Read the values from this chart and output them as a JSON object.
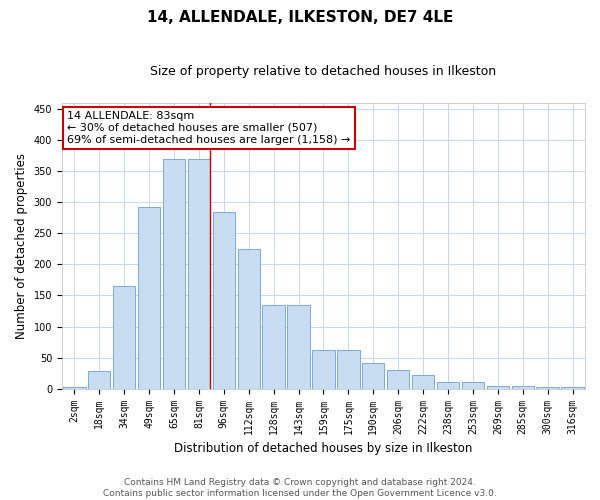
{
  "title": "14, ALLENDALE, ILKESTON, DE7 4LE",
  "subtitle": "Size of property relative to detached houses in Ilkeston",
  "xlabel": "Distribution of detached houses by size in Ilkeston",
  "ylabel": "Number of detached properties",
  "categories": [
    "2sqm",
    "18sqm",
    "34sqm",
    "49sqm",
    "65sqm",
    "81sqm",
    "96sqm",
    "112sqm",
    "128sqm",
    "143sqm",
    "159sqm",
    "175sqm",
    "190sqm",
    "206sqm",
    "222sqm",
    "238sqm",
    "253sqm",
    "269sqm",
    "285sqm",
    "300sqm",
    "316sqm"
  ],
  "values": [
    2,
    28,
    165,
    293,
    370,
    370,
    285,
    225,
    135,
    135,
    62,
    62,
    42,
    30,
    22,
    10,
    10,
    5,
    5,
    2,
    2
  ],
  "bar_color": "#c9ddf2",
  "bar_edge_color": "#6b9fd4",
  "vline_color": "#cc0000",
  "annotation_text": "14 ALLENDALE: 83sqm\n← 30% of detached houses are smaller (507)\n69% of semi-detached houses are larger (1,158) →",
  "annotation_box_color": "#ffffff",
  "annotation_box_edge_color": "#cc0000",
  "ylim": [
    0,
    460
  ],
  "yticks": [
    0,
    50,
    100,
    150,
    200,
    250,
    300,
    350,
    400,
    450
  ],
  "footer_line1": "Contains HM Land Registry data © Crown copyright and database right 2024.",
  "footer_line2": "Contains public sector information licensed under the Open Government Licence v3.0.",
  "background_color": "#ffffff",
  "grid_color": "#c8d8ec",
  "title_fontsize": 11,
  "subtitle_fontsize": 9,
  "axis_label_fontsize": 8.5,
  "tick_fontsize": 7,
  "annotation_fontsize": 8,
  "footer_fontsize": 6.5
}
